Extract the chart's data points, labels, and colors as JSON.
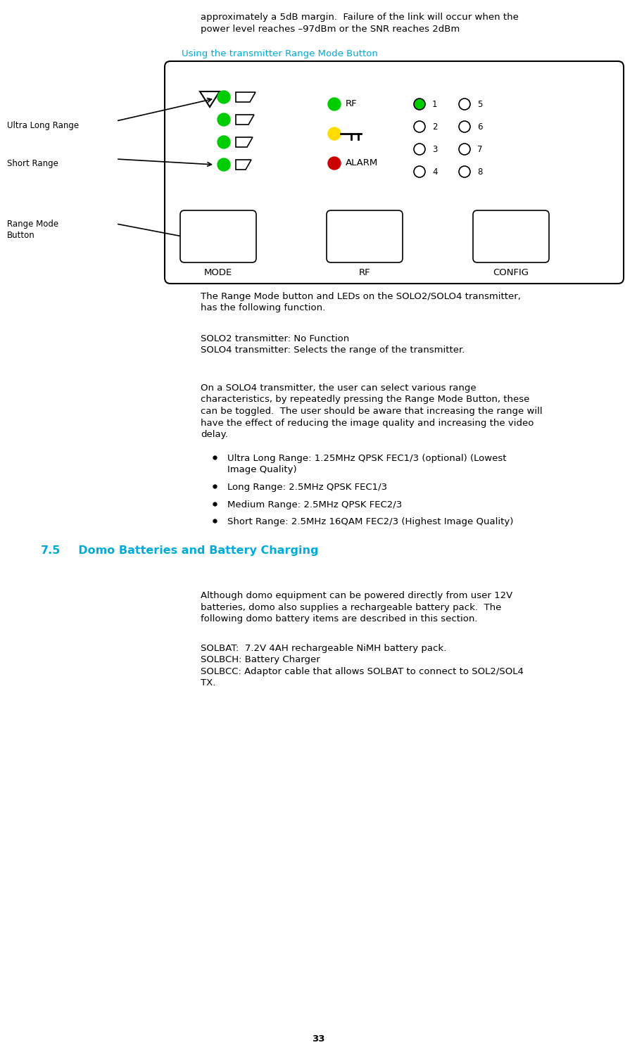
{
  "bg_color": "#ffffff",
  "page_number": "33",
  "intro_text_line1": "approximately a 5dB margin.  Failure of the link will occur when the",
  "intro_text_line2": "power level reaches –97dBm or the SNR reaches 2dBm",
  "section_heading": "Using the transmitter Range Mode Button",
  "label_ultra": "Ultra Long Range",
  "label_short": "Short Range",
  "label_range_mode1": "Range Mode",
  "label_range_mode2": "Button",
  "panel_labels": [
    "MODE",
    "RF",
    "CONFIG"
  ],
  "rf_label": "RF",
  "alarm_label": "ALARM",
  "para1_l1": "The Range Mode button and LEDs on the SOLO2/SOLO4 transmitter,",
  "para1_l2": "has the following function.",
  "para2_line1": "SOLO2 transmitter: No Function",
  "para2_line2": "SOLO4 transmitter: Selects the range of the transmitter.",
  "para3_l1": "On a SOLO4 transmitter, the user can select various range",
  "para3_l2": "characteristics, by repeatedly pressing the Range Mode Button, these",
  "para3_l3": "can be toggled.  The user should be aware that increasing the range will",
  "para3_l4": "have the effect of reducing the image quality and increasing the video",
  "para3_l5": "delay.",
  "bullet1_l1": "Ultra Long Range: 1.25MHz QPSK FEC1/3 (optional) (Lowest",
  "bullet1_l2": "Image Quality)",
  "bullet2": "Long Range: 2.5MHz QPSK FEC1/3",
  "bullet3": "Medium Range: 2.5MHz QPSK FEC2/3",
  "bullet4": "Short Range: 2.5MHz 16QAM FEC2/3 (Highest Image Quality)",
  "section75_num": "7.5",
  "section75_title": "  Domo Batteries and Battery Charging",
  "s75_p1": "Although domo equipment can be powered directly from user 12V",
  "s75_p2": "batteries, domo also supplies a rechargeable battery pack.  The",
  "s75_p3": "following domo battery items are described in this section.",
  "solbat_line": "SOLBAT:  7.2V 4AH rechargeable NiMH battery pack.",
  "solbch_line": "SOLBCH: Battery Charger",
  "solbcc_l1": "SOLBCC: Adaptor cable that allows SOLBAT to connect to SOL2/SOL4",
  "solbcc_l2": "TX.",
  "cyan_color": "#00AADD",
  "text_color": "#000000",
  "indent_text": 0.315,
  "indent_body": 0.285,
  "fs_body": 9.5,
  "fs_heading": 9.5,
  "fs_section": 11.5
}
